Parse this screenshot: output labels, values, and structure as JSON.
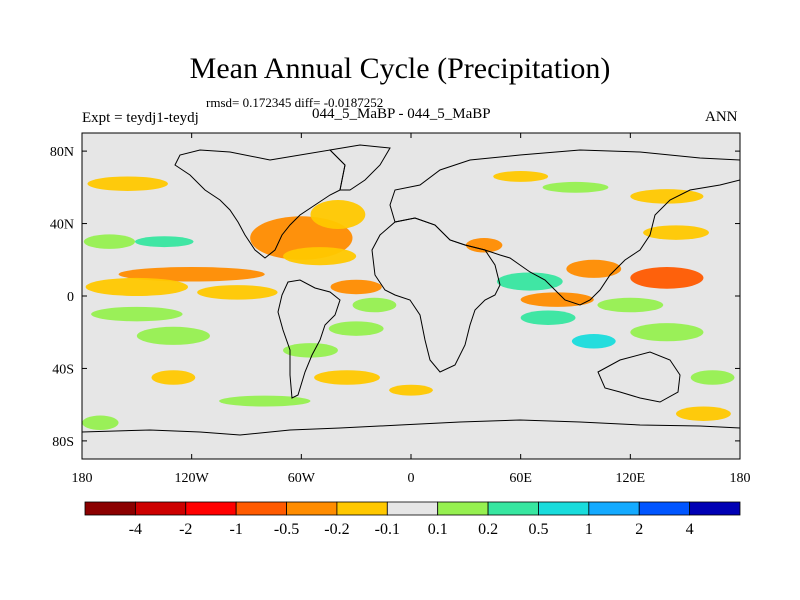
{
  "chart_data": {
    "type": "heatmap",
    "title": "Mean Annual Cycle (Precipitation)",
    "stats": "rmsd= 0.172345 diff= -0.0187252",
    "left_label": "Expt = teydj1-teydj",
    "center_label": "044_5_MaBP - 044_5_MaBP",
    "right_label": "ANN",
    "x_ticks": [
      {
        "label": "180",
        "lon": -180
      },
      {
        "label": "120W",
        "lon": -120
      },
      {
        "label": "60W",
        "lon": -60
      },
      {
        "label": "0",
        "lon": 0
      },
      {
        "label": "60E",
        "lon": 60
      },
      {
        "label": "120E",
        "lon": 120
      },
      {
        "label": "180",
        "lon": 180
      }
    ],
    "y_ticks": [
      {
        "label": "80N",
        "lat": 80
      },
      {
        "label": "40N",
        "lat": 40
      },
      {
        "label": "0",
        "lat": 0
      },
      {
        "label": "40S",
        "lat": -40
      },
      {
        "label": "80S",
        "lat": -80
      }
    ],
    "xlim": [
      -180,
      180
    ],
    "ylim": [
      -90,
      90
    ],
    "colorbar": {
      "colors": [
        "#8b0000",
        "#cd0000",
        "#ff0000",
        "#ff5a00",
        "#ff8c00",
        "#ffc800",
        "#e6e6e6",
        "#96f050",
        "#37e6a0",
        "#19dcdc",
        "#14aaff",
        "#0055ff",
        "#0000b4"
      ],
      "levels": [
        "-4",
        "-2",
        "-1",
        "-0.5",
        "-0.2",
        "-0.1",
        "0.1",
        "0.2",
        "0.5",
        "1",
        "2",
        "4"
      ]
    },
    "anomaly_patches": [
      {
        "lon": -120,
        "lat": 12,
        "rx": 40,
        "ry": 4,
        "c": 4
      },
      {
        "lon": -150,
        "lat": 5,
        "rx": 28,
        "ry": 5,
        "c": 5
      },
      {
        "lon": -95,
        "lat": 2,
        "rx": 22,
        "ry": 4,
        "c": 5
      },
      {
        "lon": -150,
        "lat": -10,
        "rx": 25,
        "ry": 4,
        "c": 7
      },
      {
        "lon": -130,
        "lat": -22,
        "rx": 20,
        "ry": 5,
        "c": 7
      },
      {
        "lon": -165,
        "lat": 30,
        "rx": 14,
        "ry": 4,
        "c": 7
      },
      {
        "lon": -135,
        "lat": 30,
        "rx": 16,
        "ry": 3,
        "c": 8
      },
      {
        "lon": -155,
        "lat": 62,
        "rx": 22,
        "ry": 4,
        "c": 5
      },
      {
        "lon": -60,
        "lat": 32,
        "rx": 28,
        "ry": 12,
        "c": 4
      },
      {
        "lon": -40,
        "lat": 45,
        "rx": 15,
        "ry": 8,
        "c": 5
      },
      {
        "lon": -50,
        "lat": 22,
        "rx": 20,
        "ry": 5,
        "c": 5
      },
      {
        "lon": -30,
        "lat": 5,
        "rx": 14,
        "ry": 4,
        "c": 4
      },
      {
        "lon": -20,
        "lat": -5,
        "rx": 12,
        "ry": 4,
        "c": 7
      },
      {
        "lon": -30,
        "lat": -18,
        "rx": 15,
        "ry": 4,
        "c": 7
      },
      {
        "lon": -55,
        "lat": -30,
        "rx": 15,
        "ry": 4,
        "c": 7
      },
      {
        "lon": -35,
        "lat": -45,
        "rx": 18,
        "ry": 4,
        "c": 5
      },
      {
        "lon": 0,
        "lat": -52,
        "rx": 12,
        "ry": 3,
        "c": 5
      },
      {
        "lon": -80,
        "lat": -58,
        "rx": 25,
        "ry": 3,
        "c": 7
      },
      {
        "lon": 40,
        "lat": 28,
        "rx": 10,
        "ry": 4,
        "c": 4
      },
      {
        "lon": 65,
        "lat": 8,
        "rx": 18,
        "ry": 5,
        "c": 8
      },
      {
        "lon": 80,
        "lat": -2,
        "rx": 20,
        "ry": 4,
        "c": 4
      },
      {
        "lon": 75,
        "lat": -12,
        "rx": 15,
        "ry": 4,
        "c": 8
      },
      {
        "lon": 100,
        "lat": 15,
        "rx": 15,
        "ry": 5,
        "c": 4
      },
      {
        "lon": 140,
        "lat": 10,
        "rx": 20,
        "ry": 6,
        "c": 3
      },
      {
        "lon": 145,
        "lat": 35,
        "rx": 18,
        "ry": 4,
        "c": 5
      },
      {
        "lon": 120,
        "lat": -5,
        "rx": 18,
        "ry": 4,
        "c": 7
      },
      {
        "lon": 140,
        "lat": -20,
        "rx": 20,
        "ry": 5,
        "c": 7
      },
      {
        "lon": 100,
        "lat": -25,
        "rx": 12,
        "ry": 4,
        "c": 9
      },
      {
        "lon": 165,
        "lat": -45,
        "rx": 12,
        "ry": 4,
        "c": 7
      },
      {
        "lon": 140,
        "lat": 55,
        "rx": 20,
        "ry": 4,
        "c": 5
      },
      {
        "lon": 90,
        "lat": 60,
        "rx": 18,
        "ry": 3,
        "c": 7
      },
      {
        "lon": 60,
        "lat": 66,
        "rx": 15,
        "ry": 3,
        "c": 5
      },
      {
        "lon": 160,
        "lat": -65,
        "rx": 15,
        "ry": 4,
        "c": 5
      },
      {
        "lon": -130,
        "lat": -45,
        "rx": 12,
        "ry": 4,
        "c": 5
      },
      {
        "lon": -170,
        "lat": -70,
        "rx": 10,
        "ry": 4,
        "c": 7
      }
    ]
  }
}
